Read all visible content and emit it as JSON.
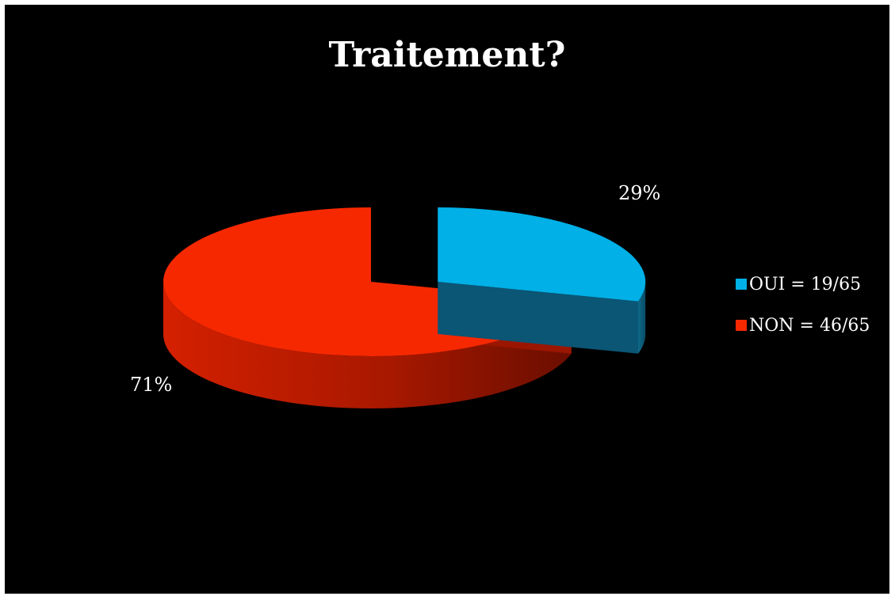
{
  "chart_data": {
    "type": "pie",
    "title": "Traitement?",
    "slices": [
      {
        "label": "OUI = 19/65",
        "value": 19,
        "percent_label": "29%",
        "color": "#00B0E6",
        "side_color": "#0E5F7D",
        "exploded": true
      },
      {
        "label": "NON = 46/65",
        "value": 46,
        "percent_label": "71%",
        "color": "#F62800",
        "side_color": "#B01A00",
        "exploded": false
      }
    ],
    "total": 65,
    "legend_position": "right",
    "background": "#000000"
  }
}
